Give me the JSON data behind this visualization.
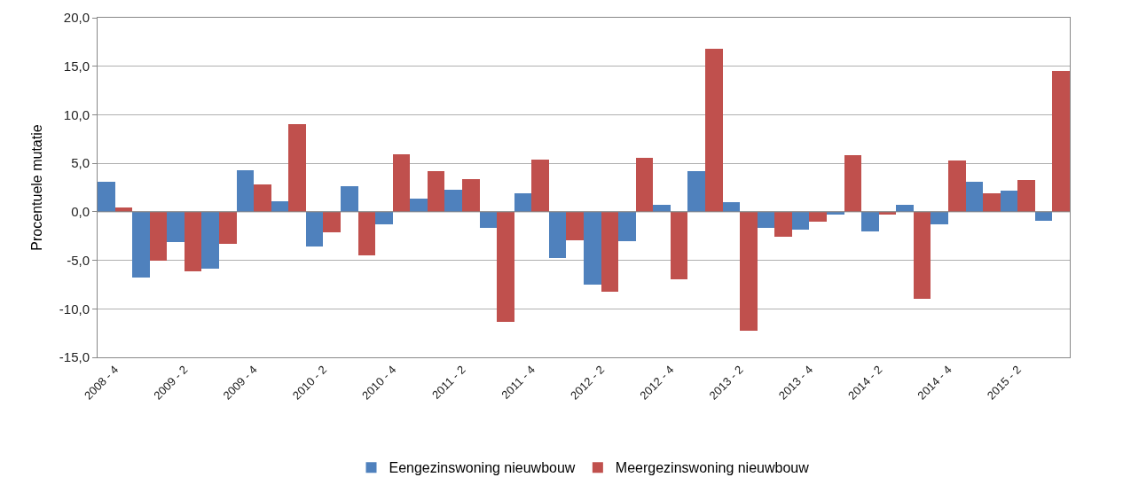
{
  "chart_data": {
    "type": "bar",
    "ylabel": "Procentuele mutatie",
    "categories": [
      "2008 - 4",
      null,
      "2009 - 2",
      null,
      "2009 - 4",
      null,
      "2010 - 2",
      null,
      "2010 - 4",
      null,
      "2011 - 2",
      null,
      "2011 - 4",
      null,
      "2012 - 2",
      null,
      "2012 - 4",
      null,
      "2013 - 2",
      null,
      "2013 - 4",
      null,
      "2014 - 2",
      null,
      "2014 - 4",
      null,
      "2015 - 2",
      null
    ],
    "series": [
      {
        "name": "Eengezinswoning nieuwbouw",
        "color": "#4f81bd",
        "values": [
          3.1,
          -6.8,
          -3.1,
          -5.9,
          4.3,
          1.1,
          -3.6,
          2.6,
          -1.3,
          1.4,
          2.3,
          -1.7,
          1.9,
          -4.8,
          -7.5,
          -3.0,
          0.7,
          4.2,
          1.0,
          -1.7,
          -1.8,
          -0.3,
          -2.0,
          0.7,
          -1.3,
          3.1,
          2.2,
          -0.9
        ]
      },
      {
        "name": "Meergezinswoning nieuwbouw",
        "color": "#c0504d",
        "values": [
          0.4,
          -5.0,
          -6.1,
          -3.3,
          2.8,
          9.0,
          -2.1,
          -4.5,
          5.9,
          4.2,
          3.4,
          -11.3,
          5.4,
          -2.9,
          -8.2,
          5.6,
          -7.0,
          16.8,
          -12.3,
          -2.6,
          -1.0,
          5.8,
          -0.3,
          -9.0,
          5.3,
          1.9,
          3.3,
          14.5
        ]
      }
    ],
    "ylim": [
      -15,
      20
    ],
    "yticks": [
      {
        "value": -15,
        "label": "-15,0"
      },
      {
        "value": -10,
        "label": "-10,0"
      },
      {
        "value": -5,
        "label": "-5,0"
      },
      {
        "value": 0,
        "label": "0,0"
      },
      {
        "value": 5,
        "label": "5,0"
      },
      {
        "value": 10,
        "label": "10,0"
      },
      {
        "value": 15,
        "label": "15,0"
      },
      {
        "value": 20,
        "label": "20,0"
      }
    ],
    "grid": "y",
    "legend": "bottom"
  }
}
